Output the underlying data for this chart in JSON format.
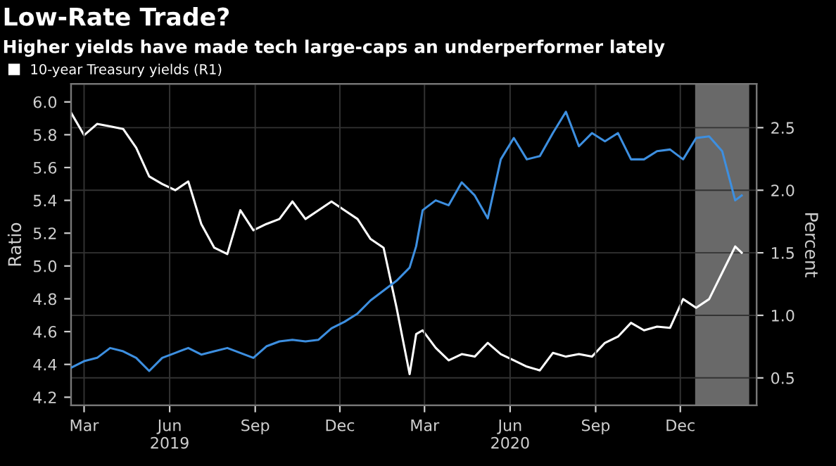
{
  "chart_data": {
    "type": "line",
    "title": "Low-Rate Trade?",
    "subtitle": "Higher yields have made tech large-caps an underperformer lately",
    "ylabel": "Ratio",
    "y2label": "Percent",
    "x": [
      "2019-02-15",
      "2019-03-01",
      "2019-03-15",
      "2019-03-29",
      "2019-04-12",
      "2019-04-26",
      "2019-05-10",
      "2019-05-24",
      "2019-06-07",
      "2019-06-21",
      "2019-07-05",
      "2019-07-19",
      "2019-08-02",
      "2019-08-16",
      "2019-08-30",
      "2019-09-13",
      "2019-09-27",
      "2019-10-11",
      "2019-10-25",
      "2019-11-08",
      "2019-11-22",
      "2019-12-06",
      "2019-12-20",
      "2020-01-03",
      "2020-01-17",
      "2020-01-31",
      "2020-02-14",
      "2020-02-21",
      "2020-02-28",
      "2020-03-13",
      "2020-03-27",
      "2020-04-10",
      "2020-04-24",
      "2020-05-08",
      "2020-05-22",
      "2020-06-05",
      "2020-06-19",
      "2020-07-03",
      "2020-07-17",
      "2020-07-31",
      "2020-08-14",
      "2020-08-28",
      "2020-09-11",
      "2020-09-25",
      "2020-10-09",
      "2020-10-23",
      "2020-11-06",
      "2020-11-20",
      "2020-12-04",
      "2020-12-18",
      "2021-01-01",
      "2021-01-15",
      "2021-01-29",
      "2021-02-05"
    ],
    "series": [
      {
        "name": "10-year Treasury yields (R1)",
        "color": "#ffffff",
        "axis": "y2",
        "values": [
          2.62,
          2.44,
          2.53,
          2.51,
          2.49,
          2.34,
          2.11,
          2.05,
          2.0,
          2.07,
          1.73,
          1.54,
          1.49,
          1.84,
          1.68,
          1.73,
          1.77,
          1.91,
          1.77,
          1.84,
          1.91,
          1.84,
          1.77,
          1.61,
          1.54,
          1.06,
          0.53,
          0.85,
          0.88,
          0.74,
          0.64,
          0.69,
          0.67,
          0.78,
          0.69,
          0.64,
          0.59,
          0.56,
          0.7,
          0.67,
          0.69,
          0.67,
          0.78,
          0.83,
          0.94,
          0.88,
          0.91,
          0.9,
          1.13,
          1.06,
          1.13,
          1.34,
          1.55,
          1.5
        ]
      },
      {
        "color": "#3d8fe0",
        "values": [
          4.38,
          4.42,
          4.44,
          4.5,
          4.48,
          4.44,
          4.36,
          4.44,
          4.47,
          4.5,
          4.46,
          4.48,
          4.5,
          4.47,
          4.44,
          4.51,
          4.54,
          4.55,
          4.54,
          4.55,
          4.62,
          4.66,
          4.71,
          4.79,
          4.85,
          4.91,
          4.99,
          5.12,
          5.34,
          5.4,
          5.37,
          5.51,
          5.43,
          5.29,
          5.65,
          5.78,
          5.65,
          5.67,
          5.81,
          5.94,
          5.73,
          5.81,
          5.76,
          5.81,
          5.65,
          5.65,
          5.7,
          5.71,
          5.65,
          5.78,
          5.79,
          5.7,
          5.4,
          5.43
        ]
      }
    ],
    "xlim": [
      "2019-02-15",
      "2021-02-21"
    ],
    "xticks": [
      {
        "value": "2019-03-01",
        "label": "Mar"
      },
      {
        "value": "2019-06-01",
        "label": "Jun\n2019"
      },
      {
        "value": "2019-09-01",
        "label": "Sep"
      },
      {
        "value": "2019-12-01",
        "label": "Dec"
      },
      {
        "value": "2020-03-01",
        "label": "Mar"
      },
      {
        "value": "2020-06-01",
        "label": "Jun\n2020"
      },
      {
        "value": "2020-09-01",
        "label": "Sep"
      },
      {
        "value": "2020-12-01",
        "label": "Dec"
      }
    ],
    "ylim": [
      4.15,
      6.11
    ],
    "yticks": [
      4.2,
      4.4,
      4.6,
      4.8,
      {
        "value": 5.0,
        "label": "5.0"
      },
      5.2,
      5.4,
      5.6,
      5.8,
      {
        "value": 6.0,
        "label": "6.0"
      }
    ],
    "y2lim": [
      0.28,
      2.85
    ],
    "y2ticks": [
      0.5,
      {
        "value": 1.0,
        "label": "1.0"
      },
      1.5,
      {
        "value": 2.0,
        "label": "2.0"
      },
      2.5
    ],
    "bands": [
      {
        "axis": "x",
        "from": "2020-12-18",
        "to": "2021-02-12",
        "color": "#8c8c8c"
      }
    ],
    "grid": true,
    "legend": "top left"
  }
}
